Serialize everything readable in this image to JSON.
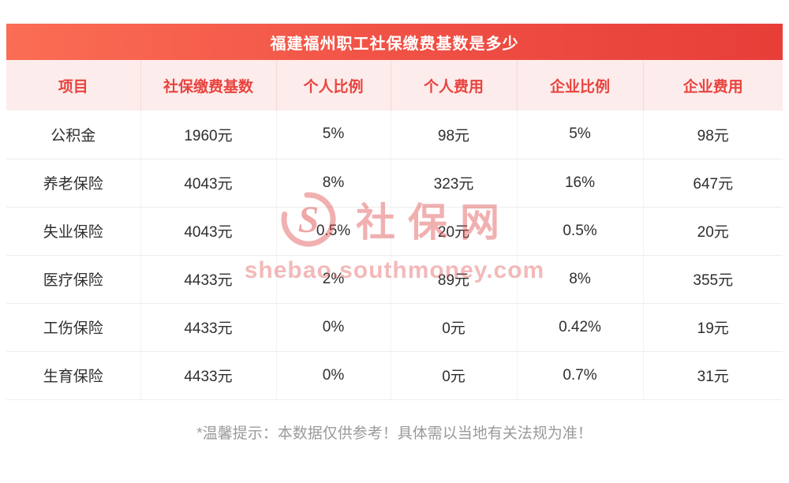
{
  "title_bar": {
    "title": "福建福州职工社保缴费基数是多少"
  },
  "chart_data": {
    "type": "table",
    "title": "福建福州职工社保缴费基数是多少",
    "columns": [
      "项目",
      "社保缴费基数",
      "个人比例",
      "个人费用",
      "企业比例",
      "企业费用"
    ],
    "rows": [
      [
        "公积金",
        "1960元",
        "5%",
        "98元",
        "5%",
        "98元"
      ],
      [
        "养老保险",
        "4043元",
        "8%",
        "323元",
        "16%",
        "647元"
      ],
      [
        "失业保险",
        "4043元",
        "0.5%",
        "20元",
        "0.5%",
        "20元"
      ],
      [
        "医疗保险",
        "4433元",
        "2%",
        "89元",
        "8%",
        "355元"
      ],
      [
        "工伤保险",
        "4433元",
        "0%",
        "0元",
        "0.42%",
        "19元"
      ],
      [
        "生育保险",
        "4433元",
        "0%",
        "0元",
        "0.7%",
        "31元"
      ]
    ]
  },
  "watermark": {
    "logo_text": "S",
    "brand": "社保网",
    "url": "shebao.southmoney.com"
  },
  "footer": {
    "note": "*温馨提示：本数据仅供参考！具体需以当地有关法规为准！"
  },
  "colors": {
    "title_gradient_start": "#fb6d54",
    "title_gradient_end": "#e73e38",
    "header_row_bg": "#fdecec",
    "accent_red": "#e8433e",
    "body_text": "#2e2e2e",
    "note_text": "#9a9a9a",
    "watermark_red": "#e05050"
  }
}
